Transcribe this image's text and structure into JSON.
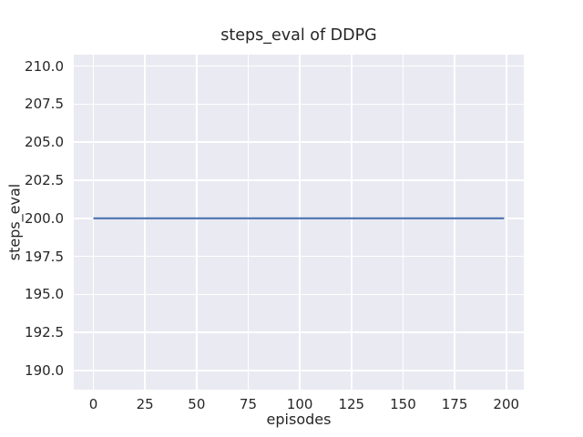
{
  "chart_data": {
    "type": "line",
    "title": "steps_eval of DDPG",
    "xlabel": "episodes",
    "ylabel": "steps_eval",
    "xlim": [
      -9.5,
      208.5
    ],
    "ylim": [
      188.75,
      210.75
    ],
    "xticks": [
      {
        "value": 0,
        "label": "0"
      },
      {
        "value": 25,
        "label": "25"
      },
      {
        "value": 50,
        "label": "50"
      },
      {
        "value": 75,
        "label": "75"
      },
      {
        "value": 100,
        "label": "100"
      },
      {
        "value": 125,
        "label": "125"
      },
      {
        "value": 150,
        "label": "150"
      },
      {
        "value": 175,
        "label": "175"
      },
      {
        "value": 200,
        "label": "200"
      }
    ],
    "yticks": [
      {
        "value": 190.0,
        "label": "190.0"
      },
      {
        "value": 192.5,
        "label": "192.5"
      },
      {
        "value": 195.0,
        "label": "195.0"
      },
      {
        "value": 197.5,
        "label": "197.5"
      },
      {
        "value": 200.0,
        "label": "200.0"
      },
      {
        "value": 202.5,
        "label": "202.5"
      },
      {
        "value": 205.0,
        "label": "205.0"
      },
      {
        "value": 207.5,
        "label": "207.5"
      },
      {
        "value": 210.0,
        "label": "210.0"
      }
    ],
    "grid": true,
    "legend": false,
    "series": [
      {
        "name": "steps_eval",
        "color": "#4C72B0",
        "line_width": 2.2,
        "points": [
          [
            0,
            200
          ],
          [
            199,
            200
          ]
        ],
        "constant_value": 200,
        "x_range": [
          0,
          199
        ]
      }
    ],
    "colors": {
      "figure_bg": "#FFFFFF",
      "plot_bg": "#EAEAF2",
      "grid": "#FFFFFF",
      "text": "#262626"
    }
  }
}
